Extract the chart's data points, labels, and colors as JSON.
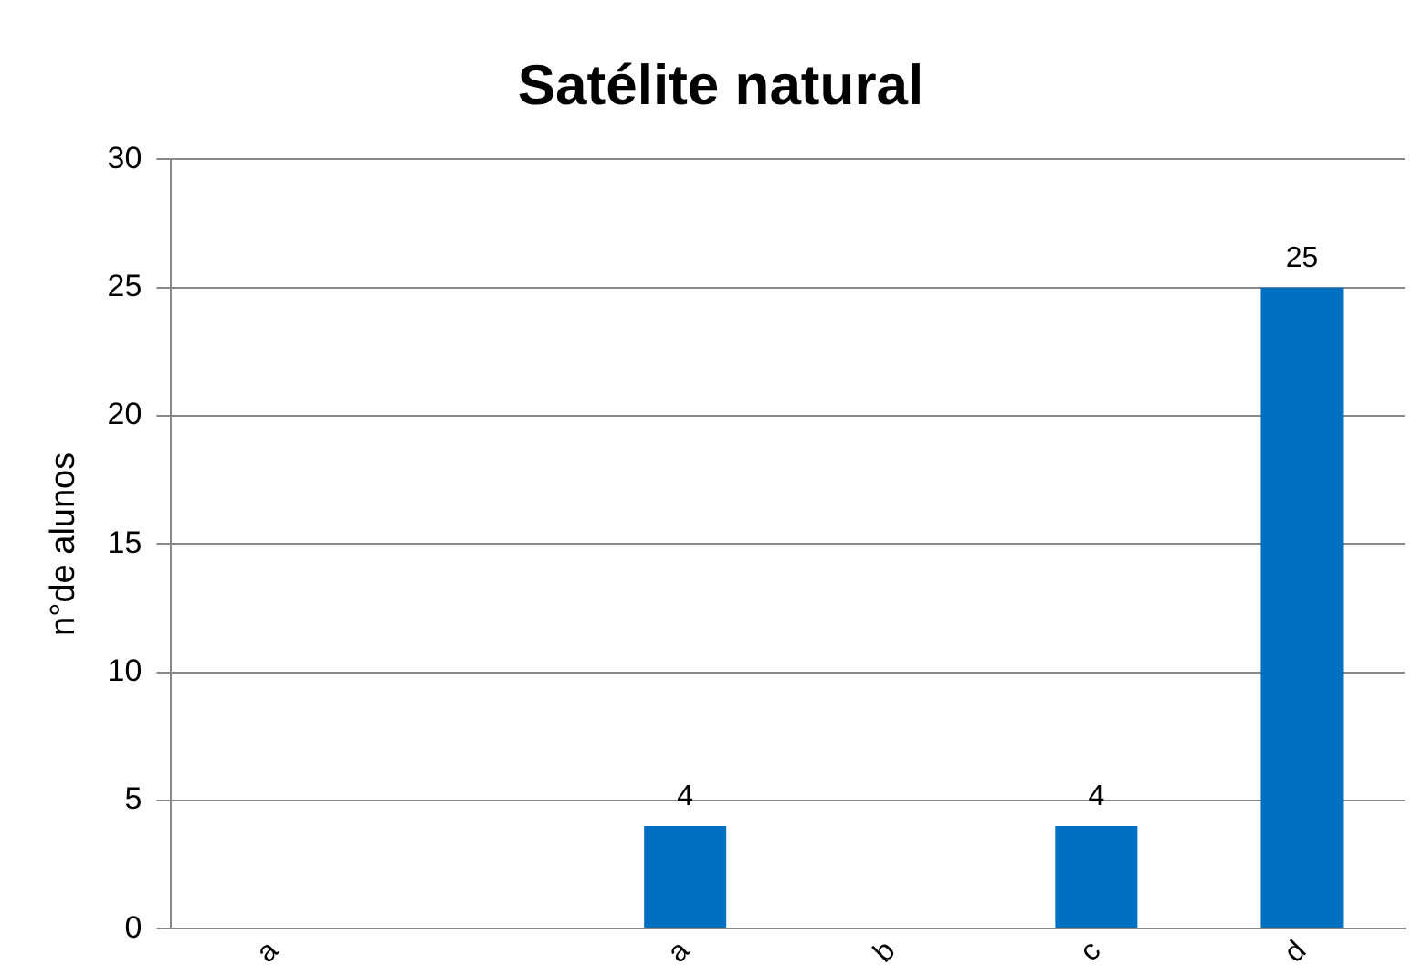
{
  "chart_data": {
    "type": "bar",
    "title": "Satélite natural",
    "ylabel": "n°de alunos",
    "categories": [
      "a",
      null,
      "a",
      "b",
      "c",
      "d"
    ],
    "values": [
      0,
      0,
      4,
      0,
      4,
      25
    ],
    "value_labels": [
      null,
      null,
      "4",
      null,
      "4",
      "25"
    ],
    "color": "#0070c0",
    "ylim": [
      0,
      30
    ],
    "yticks": [
      0,
      5,
      10,
      15,
      20,
      25,
      30
    ],
    "grid": "y",
    "legend": false
  }
}
